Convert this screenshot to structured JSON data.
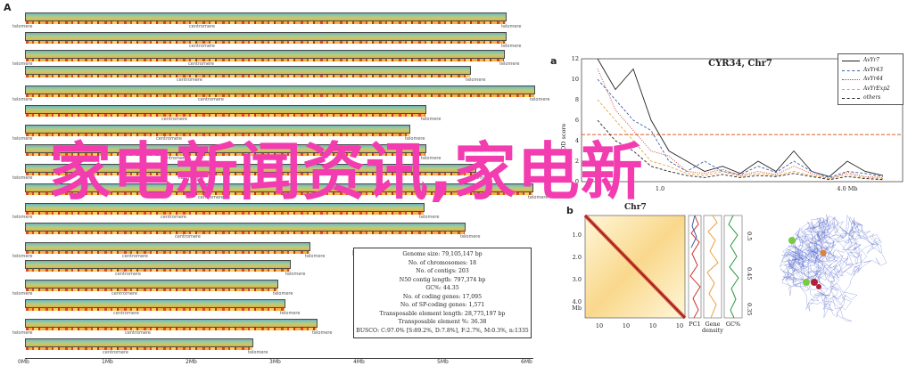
{
  "overlay": {
    "text": "家电新闻资讯,家电新"
  },
  "panelA": {
    "label": "A",
    "telomere_label": "telomere",
    "centromere_label": "centromere",
    "axis_ticks": [
      "0Mb",
      "1Mb",
      "2Mb",
      "3Mb",
      "4Mb",
      "5Mb",
      "6Mb"
    ]
  },
  "panelB": {
    "label": "B",
    "stats": [
      "Genome size: 79,105,147 bp",
      "No. of chromosomes: 18",
      "No. of contigs: 203",
      "N50 contig length: 797,374 bp",
      "GC%: 44.35",
      "No. of coding genes: 17,095",
      "No. of SP-coding genes: 1,571",
      "Transposable element length: 28,775,197 bp",
      "Transposable element %: 36.38",
      "BUSCO: C:97.0% [S:89.2%, D:7.8%], F:2.7%, M:0.3%, n:1335"
    ]
  },
  "chart_data": {
    "type": "line",
    "panel_label": "a",
    "title": "CYR34, Chr7",
    "ylabel": "LOD score",
    "xlabel": "",
    "y_ticks": [
      "0",
      "2",
      "4",
      "6",
      "8",
      "10",
      "12"
    ],
    "ylim": [
      0,
      12
    ],
    "x_ticks": [
      "1.0",
      "4.0 Mb"
    ],
    "threshold": 4.6,
    "threshold_color": "#e05a2b",
    "legend_position": "top-right",
    "series": [
      {
        "name": "AvYr7",
        "color": "#222222",
        "style": "solid"
      },
      {
        "name": "AvYr43",
        "color": "#3a5fa8",
        "style": "dashed"
      },
      {
        "name": "AvYr44",
        "color": "#d0342c",
        "style": "dotted"
      },
      {
        "name": "AvYrExp2",
        "color": "#e9a23b",
        "style": "dashed"
      },
      {
        "name": "others",
        "color": "#222222",
        "style": "dashed"
      }
    ]
  },
  "panelb": {
    "label": "b",
    "title": "Chr7",
    "y_ticks": [
      "1.0",
      "2.0",
      "3.0",
      "4.0"
    ],
    "y_unit": "Mb",
    "x_ticks": [
      "10",
      "10",
      "10",
      "10"
    ],
    "track_labels": [
      "PC1",
      "Gene density",
      "GC%"
    ],
    "side_ticks": [
      "0.5",
      "0.45",
      "0.35"
    ]
  }
}
